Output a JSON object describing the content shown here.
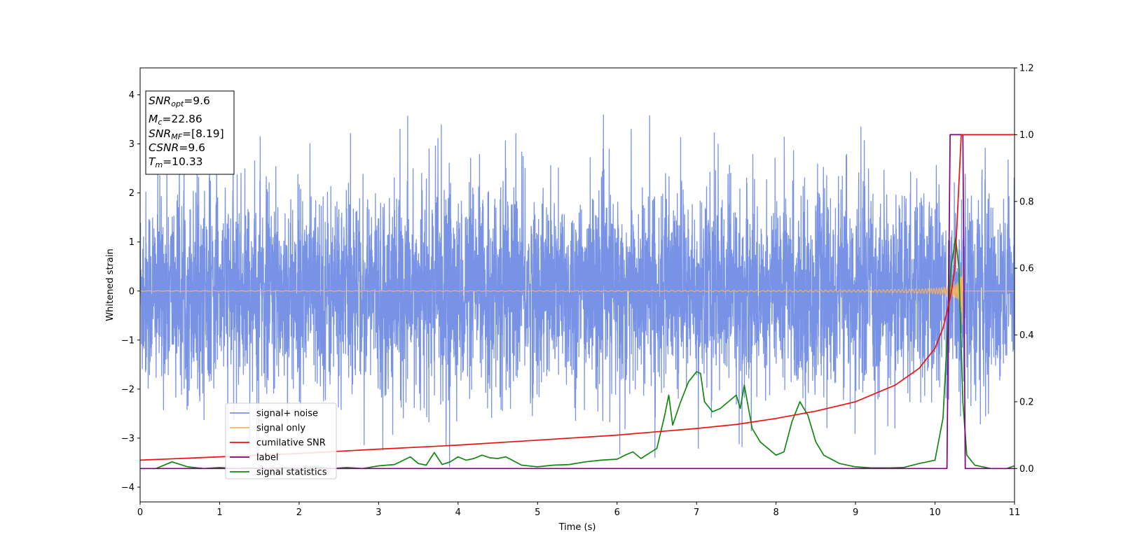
{
  "chart_data": {
    "type": "line",
    "xlabel": "Time (s)",
    "ylabel": "Whitened strain",
    "xlim": [
      0,
      11
    ],
    "ylim_left": [
      -4.3,
      4.55
    ],
    "ylim_right": [
      -0.1,
      1.2
    ],
    "x_ticks": [
      "0",
      "1",
      "2",
      "3",
      "4",
      "5",
      "6",
      "7",
      "8",
      "9",
      "10",
      "11"
    ],
    "y_ticks_left": [
      "4",
      "3",
      "2",
      "1",
      "0",
      "−1",
      "−2",
      "−3",
      "−4"
    ],
    "y_ticks_right": [
      "1.2",
      "1.0",
      "0.8",
      "0.6",
      "0.4",
      "0.2",
      "0.0"
    ],
    "grid": false,
    "legend_position": "lower-left",
    "info_box": {
      "lines": [
        {
          "main": "SNR",
          "sub": "opt",
          "value": "=9.6"
        },
        {
          "main": "M",
          "sub": "c",
          "value": "=22.86"
        },
        {
          "main": "SNR",
          "sub": "MF",
          "value": "=[8.19]"
        },
        {
          "main": "CSNR",
          "sub": "",
          "value": "=9.6"
        },
        {
          "main": "T",
          "sub": "m",
          "value": "=10.33"
        }
      ]
    },
    "series": [
      {
        "name": "signal+ noise",
        "axis": "left",
        "color": "#7893e6",
        "description": "whitened noisy strain, amplitude roughly within ±2.5 with spikes to ±3.6",
        "approx_range": [
          -3.6,
          3.6
        ]
      },
      {
        "name": "signal only",
        "axis": "left",
        "color": "#f2b266",
        "description": "chirp signal growing in amplitude, peaking near t=10.33",
        "peak_time": 10.33,
        "peak_amplitude": 1.1
      },
      {
        "name": "cumilative SNR",
        "axis": "right",
        "color": "#ee1111",
        "x": [
          0,
          1,
          2,
          3,
          4,
          5,
          6,
          6.5,
          7,
          7.5,
          8,
          8.5,
          9,
          9.5,
          9.8,
          10.0,
          10.1,
          10.2,
          10.25,
          10.3,
          10.33,
          11
        ],
        "y": [
          0.025,
          0.035,
          0.045,
          0.058,
          0.07,
          0.085,
          0.1,
          0.11,
          0.12,
          0.132,
          0.15,
          0.172,
          0.2,
          0.25,
          0.3,
          0.36,
          0.42,
          0.52,
          0.6,
          0.85,
          1.0,
          1.0
        ]
      },
      {
        "name": "label",
        "axis": "right",
        "color": "#800080",
        "x": [
          0,
          10.15,
          10.19,
          10.35,
          10.38,
          11
        ],
        "y": [
          0,
          0,
          1.0,
          1.0,
          0,
          0
        ]
      },
      {
        "name": "signal statistics",
        "axis": "right",
        "color": "#118811",
        "x": [
          0,
          0.2,
          0.4,
          0.6,
          0.8,
          1.0,
          1.2,
          1.4,
          1.6,
          1.8,
          2.0,
          2.2,
          2.4,
          2.6,
          2.8,
          3.0,
          3.2,
          3.4,
          3.5,
          3.6,
          3.7,
          3.8,
          3.9,
          4.0,
          4.1,
          4.2,
          4.3,
          4.4,
          4.5,
          4.6,
          4.8,
          5.0,
          5.2,
          5.4,
          5.6,
          5.8,
          6.0,
          6.1,
          6.2,
          6.3,
          6.4,
          6.5,
          6.6,
          6.65,
          6.7,
          6.8,
          6.9,
          7.0,
          7.05,
          7.1,
          7.2,
          7.3,
          7.4,
          7.5,
          7.55,
          7.6,
          7.7,
          7.8,
          7.9,
          8.0,
          8.1,
          8.2,
          8.3,
          8.4,
          8.5,
          8.6,
          8.8,
          9.0,
          9.2,
          9.4,
          9.6,
          9.8,
          10.0,
          10.1,
          10.2,
          10.26,
          10.3,
          10.35,
          10.4,
          10.5,
          10.7,
          10.9,
          11
        ],
        "y": [
          0,
          0,
          0.02,
          0.005,
          0,
          0.003,
          0,
          0.002,
          0,
          0.003,
          0,
          0.005,
          0,
          0.003,
          0,
          0.008,
          0.012,
          0.035,
          0.015,
          0.01,
          0.048,
          0.012,
          0.02,
          0.035,
          0.025,
          0.03,
          0.04,
          0.032,
          0.03,
          0.035,
          0.01,
          0.005,
          0.01,
          0.012,
          0.02,
          0.025,
          0.028,
          0.04,
          0.05,
          0.03,
          0.045,
          0.06,
          0.16,
          0.22,
          0.13,
          0.2,
          0.26,
          0.29,
          0.285,
          0.2,
          0.17,
          0.18,
          0.2,
          0.22,
          0.18,
          0.25,
          0.12,
          0.08,
          0.06,
          0.04,
          0.05,
          0.14,
          0.2,
          0.16,
          0.08,
          0.04,
          0.015,
          0.005,
          0.002,
          0.002,
          0.003,
          0.015,
          0.025,
          0.15,
          0.6,
          0.69,
          0.6,
          0.2,
          0.04,
          0.01,
          0,
          0,
          0.008
        ]
      }
    ]
  }
}
